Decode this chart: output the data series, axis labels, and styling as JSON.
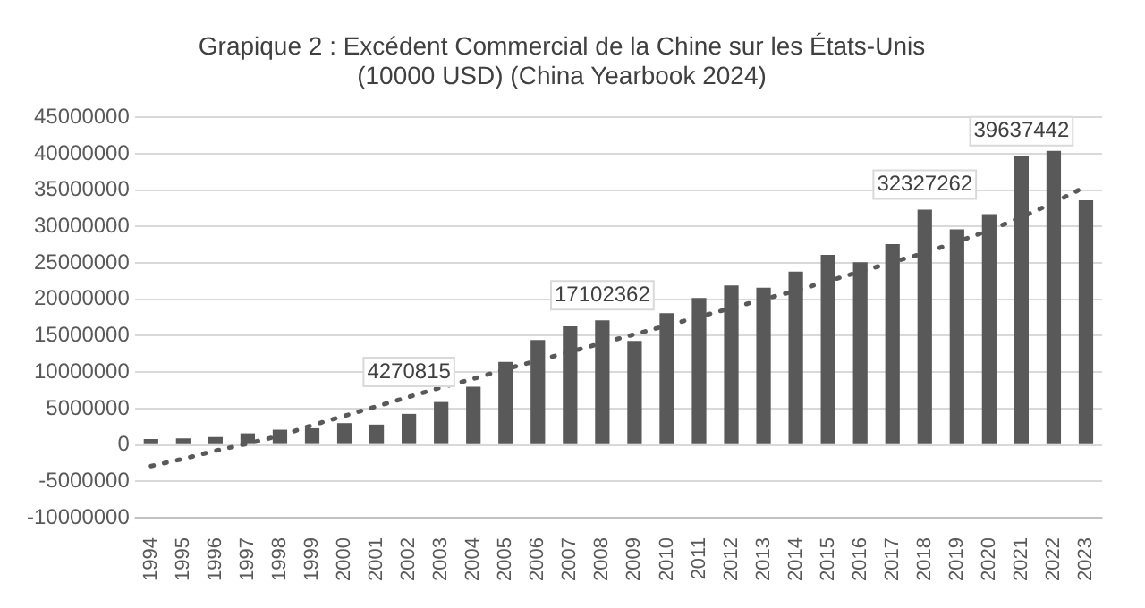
{
  "chart_data": {
    "type": "bar",
    "title": [
      "Grapique 2 : Excédent Commercial de la Chine sur les États-Unis",
      "(10000 USD) (China Yearbook 2024)"
    ],
    "categories": [
      "1994",
      "1995",
      "1996",
      "1997",
      "1998",
      "1999",
      "2000",
      "2001",
      "2002",
      "2003",
      "2004",
      "2005",
      "2006",
      "2007",
      "2008",
      "2009",
      "2010",
      "2011",
      "2012",
      "2013",
      "2014",
      "2015",
      "2016",
      "2017",
      "2018",
      "2019",
      "2020",
      "2021",
      "2022",
      "2023"
    ],
    "series": [
      {
        "color": "#595959",
        "values": [
          800000,
          900000,
          1100000,
          1600000,
          2100000,
          2300000,
          3000000,
          2800000,
          4270815,
          5900000,
          8000000,
          11400000,
          14400000,
          16300000,
          17102362,
          14300000,
          18100000,
          20200000,
          21900000,
          21600000,
          23800000,
          26100000,
          25100000,
          27600000,
          32327262,
          29600000,
          31700000,
          39637442,
          40400000,
          33600000
        ],
        "value_labels": [
          null,
          null,
          null,
          null,
          null,
          null,
          null,
          null,
          "4270815",
          null,
          null,
          null,
          null,
          null,
          "17102362",
          null,
          null,
          null,
          null,
          null,
          null,
          null,
          null,
          null,
          "32327262",
          null,
          null,
          "39637442",
          null,
          null
        ]
      },
      {
        "type": "line",
        "color": "#595959",
        "line_style": "dotted",
        "marker": "none",
        "values": [
          -2900000,
          -1900000,
          -800000,
          200000,
          1300000,
          2700000,
          4000000,
          5300000,
          6600000,
          7900000,
          9100000,
          10400000,
          11600000,
          12800000,
          14000000,
          15200000,
          16400000,
          17600000,
          18800000,
          20000000,
          21200000,
          22500000,
          23800000,
          25100000,
          26400000,
          27900000,
          29500000,
          31300000,
          33300000,
          35500000
        ]
      }
    ],
    "ylim": [
      -10000000,
      45000000
    ],
    "yticks": [
      -10000000,
      -5000000,
      0,
      5000000,
      10000000,
      15000000,
      20000000,
      25000000,
      30000000,
      35000000,
      40000000,
      45000000
    ],
    "grid": "y",
    "legend": false
  }
}
